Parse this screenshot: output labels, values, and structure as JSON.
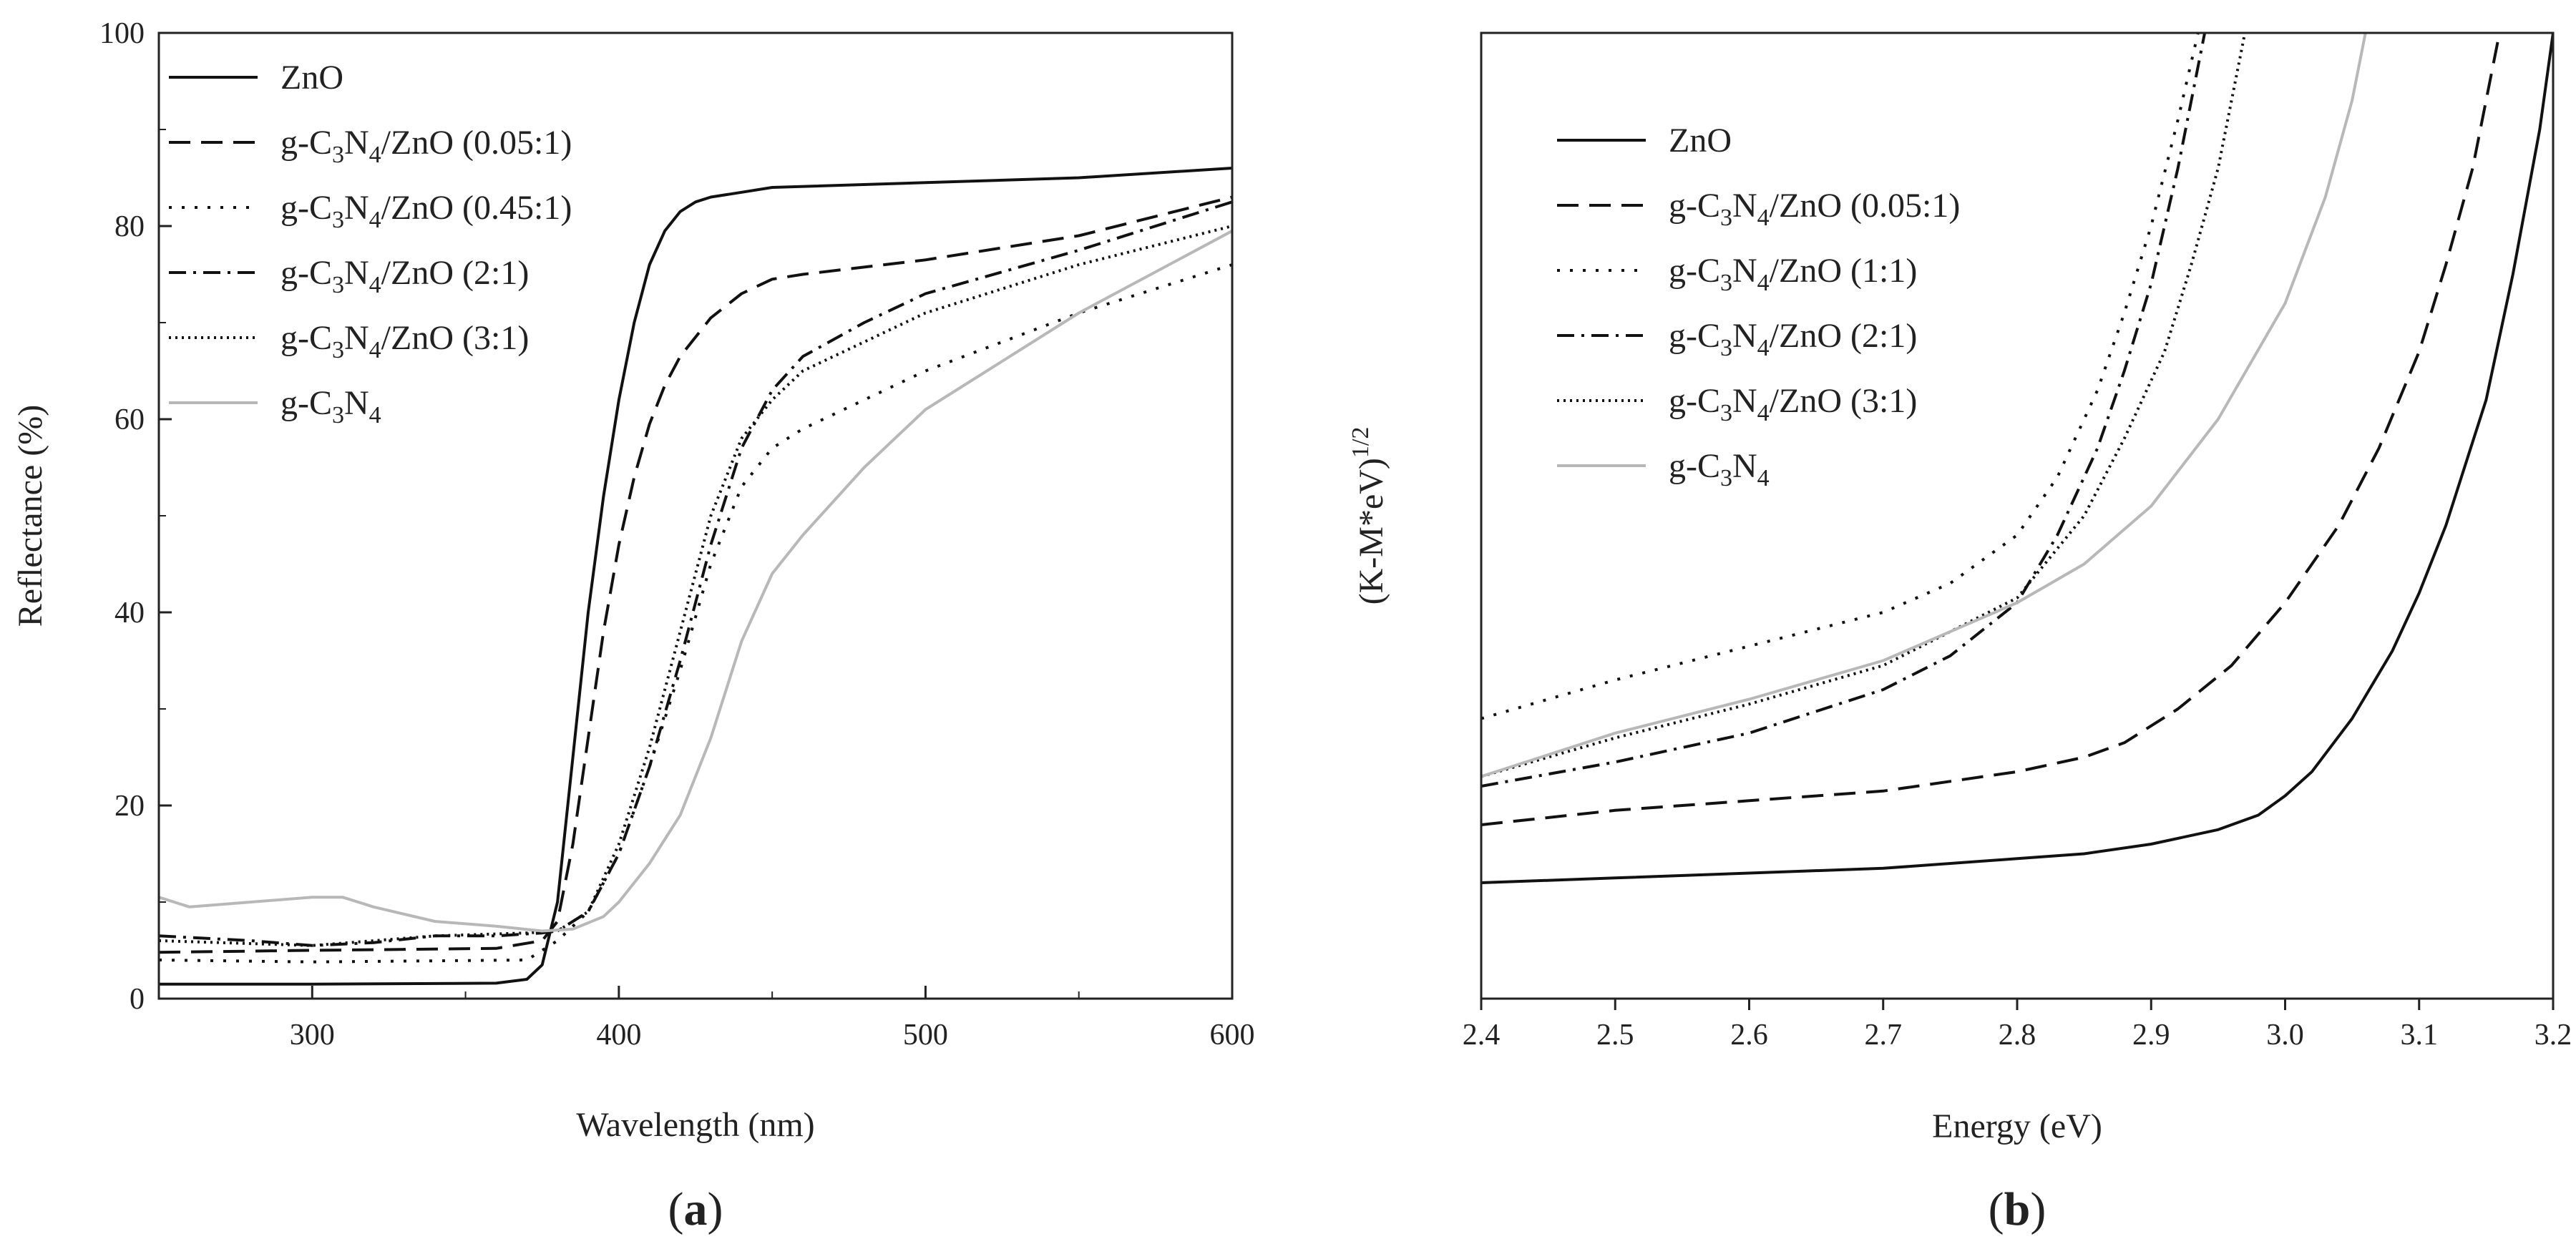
{
  "colors": {
    "black": "#111111",
    "gray": "#b8b8b8",
    "axis": "#222222"
  },
  "chart_data": [
    {
      "type": "line",
      "panel_label": "a",
      "xlabel": "Wavelength (nm)",
      "ylabel": "Reflectance (%)",
      "xlim": [
        250,
        600
      ],
      "ylim": [
        0,
        100
      ],
      "xticks": [
        "300",
        "400",
        "500",
        "600"
      ],
      "xtick_values": [
        300,
        400,
        500,
        600
      ],
      "yticks": [
        "0",
        "20",
        "40",
        "60",
        "80",
        "100"
      ],
      "ytick_values": [
        0,
        20,
        40,
        60,
        80,
        100
      ],
      "legend_position": "top-left",
      "series": [
        {
          "name": "ZnO",
          "legend": {
            "base": "ZnO"
          },
          "style": "solid",
          "color": "#111111",
          "x": [
            250,
            300,
            360,
            370,
            375,
            380,
            385,
            390,
            395,
            400,
            405,
            410,
            415,
            420,
            425,
            430,
            440,
            450,
            500,
            550,
            600
          ],
          "y": [
            1.5,
            1.5,
            1.6,
            2.0,
            3.5,
            10,
            25,
            40,
            52,
            62,
            70,
            76,
            79.5,
            81.5,
            82.5,
            83,
            83.5,
            84,
            84.5,
            85,
            86
          ]
        },
        {
          "name": "g-C3N4/ZnO (0.05:1)",
          "legend": {
            "base": "g-C",
            "sub1": "3",
            "mid": "N",
            "sub2": "4",
            "rest": "/ZnO (0.05:1)"
          },
          "style": "dashed",
          "color": "#111111",
          "x": [
            250,
            300,
            360,
            375,
            380,
            385,
            390,
            395,
            400,
            405,
            410,
            415,
            420,
            430,
            440,
            450,
            460,
            500,
            550,
            600
          ],
          "y": [
            4.8,
            5.0,
            5.2,
            6.0,
            8,
            16,
            27,
            38,
            47,
            54,
            59.5,
            63.5,
            66.5,
            70.5,
            73,
            74.5,
            75,
            76.5,
            79,
            83
          ]
        },
        {
          "name": "g-C3N4/ZnO (0.45:1)",
          "legend": {
            "base": "g-C",
            "sub1": "3",
            "mid": "N",
            "sub2": "4",
            "rest": "/ZnO (0.45:1)"
          },
          "style": "dotted",
          "color": "#111111",
          "x": [
            250,
            300,
            370,
            380,
            390,
            400,
            410,
            420,
            430,
            440,
            450,
            460,
            480,
            500,
            550,
            600
          ],
          "y": [
            4.0,
            3.8,
            4.0,
            6,
            9,
            15,
            24,
            34,
            45,
            53,
            57,
            59,
            62,
            65,
            71,
            76
          ]
        },
        {
          "name": "g-C3N4/ZnO (2:1)",
          "legend": {
            "base": "g-C",
            "sub1": "3",
            "mid": "N",
            "sub2": "4",
            "rest": "/ZnO (2:1)"
          },
          "style": "dashdot",
          "color": "#111111",
          "x": [
            250,
            280,
            300,
            320,
            340,
            360,
            375,
            380,
            390,
            400,
            410,
            420,
            430,
            440,
            450,
            460,
            480,
            500,
            550,
            600
          ],
          "y": [
            6.5,
            6.0,
            5.5,
            5.8,
            6.5,
            6.5,
            6.8,
            7.0,
            9,
            15,
            24,
            35,
            47,
            57,
            63,
            66.5,
            70,
            73,
            77.5,
            82.5
          ]
        },
        {
          "name": "g-C3N4/ZnO (3:1)",
          "legend": {
            "base": "g-C",
            "sub1": "3",
            "mid": "N",
            "sub2": "4",
            "rest": "/ZnO (3:1)"
          },
          "style": "finedotted",
          "color": "#111111",
          "x": [
            250,
            300,
            340,
            370,
            380,
            390,
            400,
            410,
            420,
            430,
            440,
            450,
            460,
            480,
            500,
            550,
            600
          ],
          "y": [
            6.0,
            5.5,
            6.5,
            6.8,
            7.0,
            9,
            16,
            26,
            38,
            50,
            58,
            62,
            65,
            68,
            71,
            76,
            80
          ]
        },
        {
          "name": "g-C3N4",
          "legend": {
            "base": "g-C",
            "sub1": "3",
            "mid": "N",
            "sub2": "4",
            "rest": ""
          },
          "style": "solid",
          "color": "#b8b8b8",
          "x": [
            250,
            260,
            280,
            300,
            310,
            320,
            340,
            360,
            375,
            385,
            395,
            400,
            410,
            420,
            430,
            440,
            450,
            460,
            480,
            500,
            550,
            600
          ],
          "y": [
            10.5,
            9.5,
            10.0,
            10.5,
            10.5,
            9.5,
            8.0,
            7.5,
            7.0,
            7.2,
            8.5,
            10,
            14,
            19,
            27,
            37,
            44,
            48,
            55,
            61,
            71,
            79.5
          ]
        }
      ]
    },
    {
      "type": "line",
      "panel_label": "b",
      "xlabel": "Energy (eV)",
      "ylabel": "(K-M*eV)",
      "ylabel_superscript": "1/2",
      "xlim": [
        2.4,
        3.2
      ],
      "ylim": [
        0,
        100
      ],
      "xticks": [
        "2.4",
        "2.5",
        "2.6",
        "2.7",
        "2.8",
        "2.9",
        "3.0",
        "3.1",
        "3.2"
      ],
      "xtick_values": [
        2.4,
        2.5,
        2.6,
        2.7,
        2.8,
        2.9,
        3.0,
        3.1,
        3.2
      ],
      "legend_position": "top-left",
      "series": [
        {
          "name": "ZnO",
          "legend": {
            "base": "ZnO"
          },
          "style": "solid",
          "color": "#111111",
          "x": [
            2.4,
            2.5,
            2.6,
            2.7,
            2.8,
            2.85,
            2.9,
            2.95,
            2.98,
            3.0,
            3.02,
            3.05,
            3.08,
            3.1,
            3.12,
            3.15,
            3.17,
            3.19,
            3.2
          ],
          "y": [
            12,
            12.5,
            13,
            13.5,
            14.5,
            15,
            16,
            17.5,
            19,
            21,
            23.5,
            29,
            36,
            42,
            49,
            62,
            75,
            90,
            100
          ]
        },
        {
          "name": "g-C3N4/ZnO (0.05:1)",
          "legend": {
            "base": "g-C",
            "sub1": "3",
            "mid": "N",
            "sub2": "4",
            "rest": "/ZnO (0.05:1)"
          },
          "style": "dashed",
          "color": "#111111",
          "x": [
            2.4,
            2.5,
            2.6,
            2.7,
            2.8,
            2.85,
            2.88,
            2.92,
            2.96,
            3.0,
            3.04,
            3.07,
            3.1,
            3.12,
            3.14,
            3.16
          ],
          "y": [
            18,
            19.5,
            20.5,
            21.5,
            23.5,
            25,
            26.5,
            30,
            34.5,
            41,
            49,
            57,
            67,
            76,
            86,
            100
          ]
        },
        {
          "name": "g-C3N4/ZnO (1:1)",
          "legend": {
            "base": "g-C",
            "sub1": "3",
            "mid": "N",
            "sub2": "4",
            "rest": "/ZnO (1:1)"
          },
          "style": "dotted",
          "color": "#111111",
          "x": [
            2.4,
            2.5,
            2.6,
            2.7,
            2.75,
            2.8,
            2.83,
            2.86,
            2.88,
            2.9,
            2.92,
            2.935
          ],
          "y": [
            29,
            33,
            36.5,
            40,
            43,
            48,
            54,
            63,
            71,
            80,
            91,
            100
          ]
        },
        {
          "name": "g-C3N4/ZnO (2:1)",
          "legend": {
            "base": "g-C",
            "sub1": "3",
            "mid": "N",
            "sub2": "4",
            "rest": "/ZnO (2:1)"
          },
          "style": "dashdot",
          "color": "#111111",
          "x": [
            2.4,
            2.5,
            2.6,
            2.7,
            2.75,
            2.8,
            2.83,
            2.86,
            2.88,
            2.9,
            2.92,
            2.94
          ],
          "y": [
            22,
            24.5,
            27.5,
            32,
            35.5,
            41,
            48,
            57,
            65,
            74,
            86,
            100
          ]
        },
        {
          "name": "g-C3N4/ZnO (3:1)",
          "legend": {
            "base": "g-C",
            "sub1": "3",
            "mid": "N",
            "sub2": "4",
            "rest": "/ZnO (3:1)"
          },
          "style": "finedotted",
          "color": "#111111",
          "x": [
            2.4,
            2.5,
            2.6,
            2.7,
            2.8,
            2.85,
            2.88,
            2.91,
            2.93,
            2.95,
            2.97
          ],
          "y": [
            23,
            27,
            30.5,
            34.5,
            41.5,
            50,
            58,
            67,
            76,
            86,
            100
          ]
        },
        {
          "name": "g-C3N4",
          "legend": {
            "base": "g-C",
            "sub1": "3",
            "mid": "N",
            "sub2": "4",
            "rest": ""
          },
          "style": "solid",
          "color": "#b8b8b8",
          "x": [
            2.4,
            2.5,
            2.6,
            2.7,
            2.8,
            2.85,
            2.9,
            2.95,
            3.0,
            3.03,
            3.05,
            3.06
          ],
          "y": [
            23,
            27.5,
            31,
            35,
            41,
            45,
            51,
            60,
            72,
            83,
            93,
            100
          ]
        }
      ]
    }
  ]
}
